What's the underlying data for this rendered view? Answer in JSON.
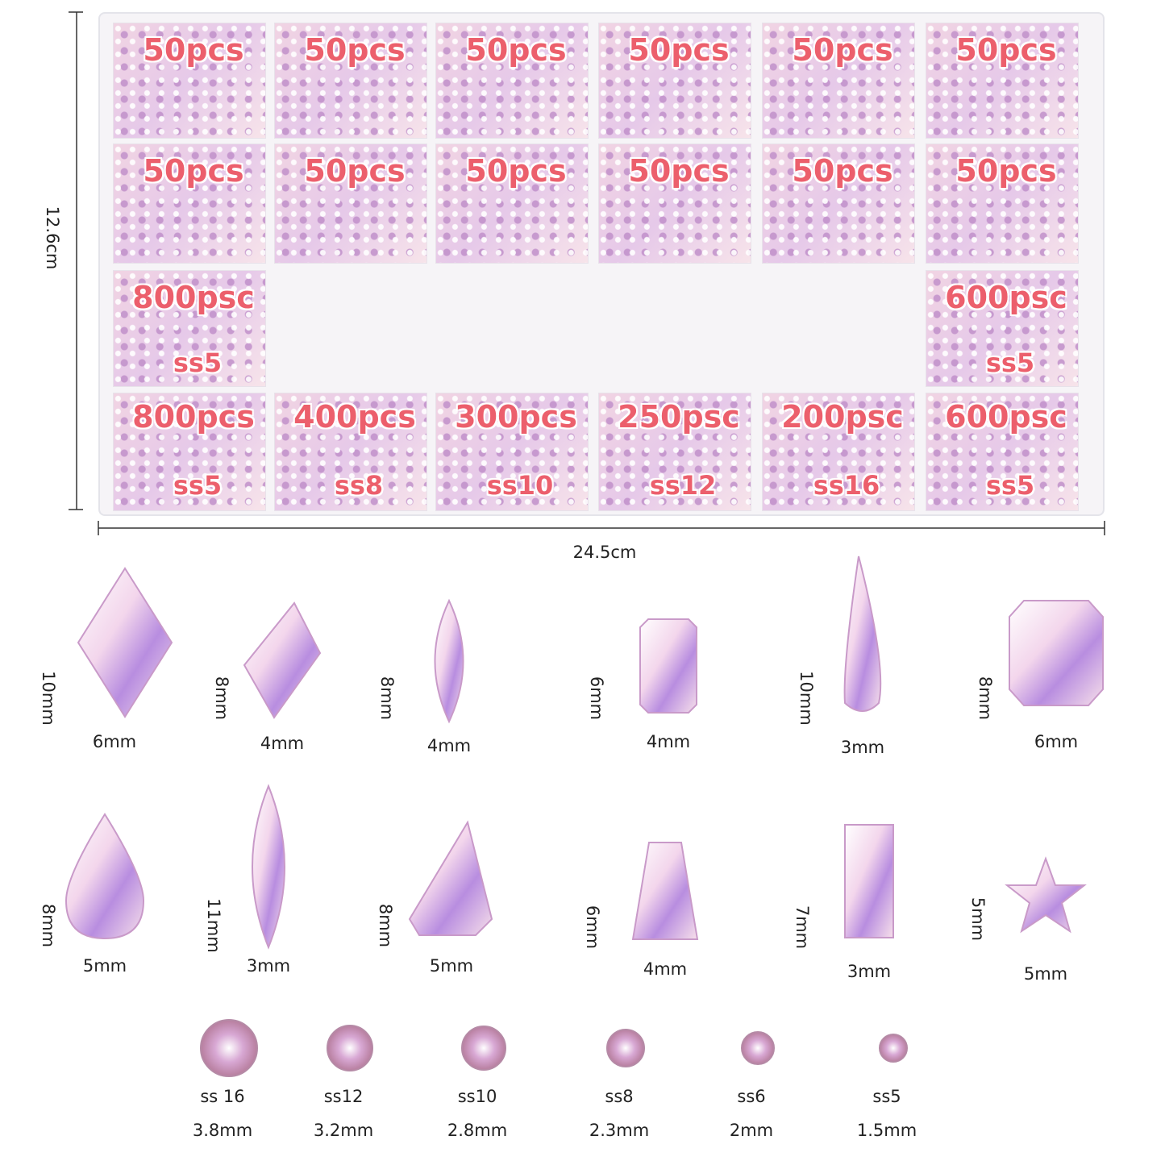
{
  "dimensions": {
    "height": "12.6cm",
    "width": "24.5cm"
  },
  "box": {
    "rows": [
      [
        {
          "count": "50pcs"
        },
        {
          "count": "50pcs"
        },
        {
          "count": "50pcs"
        },
        {
          "count": "50pcs"
        },
        {
          "count": "50pcs"
        },
        {
          "count": "50pcs"
        }
      ],
      [
        {
          "count": "50pcs"
        },
        {
          "count": "50pcs"
        },
        {
          "count": "50pcs"
        },
        {
          "count": "50pcs"
        },
        {
          "count": "50pcs"
        },
        {
          "count": "50pcs"
        }
      ],
      [
        {
          "count": "800psc",
          "size": "ss5"
        },
        {
          "count": "600psc",
          "size": "ss5"
        }
      ],
      [
        {
          "count": "800pcs",
          "size": "ss5"
        },
        {
          "count": "400pcs",
          "size": "ss8"
        },
        {
          "count": "300pcs",
          "size": "ss10"
        },
        {
          "count": "250psc",
          "size": "ss12"
        },
        {
          "count": "200psc",
          "size": "ss16"
        },
        {
          "count": "600psc",
          "size": "ss5"
        }
      ]
    ]
  },
  "shapes": [
    [
      {
        "height": "10mm",
        "width": "6mm"
      },
      {
        "height": "8mm",
        "width": "4mm"
      },
      {
        "height": "8mm",
        "width": "4mm"
      },
      {
        "height": "6mm",
        "width": "4mm"
      },
      {
        "height": "10mm",
        "width": "3mm"
      },
      {
        "height": "8mm",
        "width": "6mm"
      }
    ],
    [
      {
        "height": "8mm",
        "width": "5mm"
      },
      {
        "height": "11mm",
        "width": "3mm"
      },
      {
        "height": "8mm",
        "width": "5mm"
      },
      {
        "height": "6mm",
        "width": "4mm"
      },
      {
        "height": "7mm",
        "width": "3mm"
      },
      {
        "height": "5mm",
        "width": "5mm"
      }
    ]
  ],
  "rounds": [
    {
      "name": "ss 16",
      "size": "3.8mm"
    },
    {
      "name": "ss12",
      "size": "3.2mm"
    },
    {
      "name": "ss10",
      "size": "2.8mm"
    },
    {
      "name": "ss8",
      "size": "2.3mm"
    },
    {
      "name": "ss6",
      "size": "2mm"
    },
    {
      "name": "ss5",
      "size": "1.5mm"
    }
  ]
}
